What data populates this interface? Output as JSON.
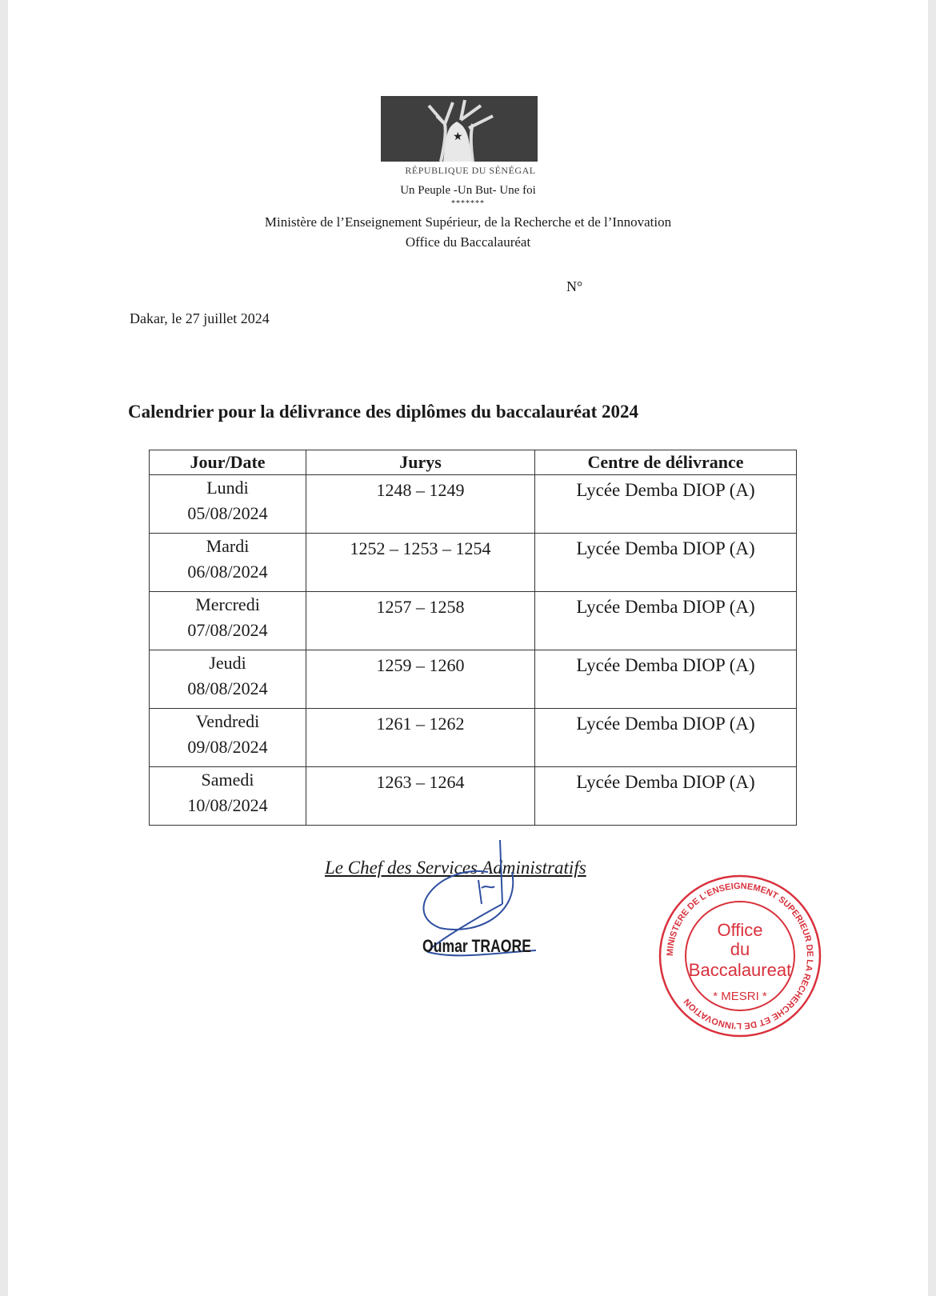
{
  "header": {
    "emblem": "baobab-star-emblem",
    "republic": "RÉPUBLIQUE DU SÉNÉGAL",
    "motto": "Un Peuple -Un But- Une foi",
    "stars": "*******",
    "ministry": "Ministère de l’Enseignement Supérieur, de la Recherche et de l’Innovation",
    "office": "Office du Baccalauréat"
  },
  "number_label": "N°",
  "place_date": "Dakar, le 27 juillet 2024",
  "title": "Calendrier pour la délivrance des diplômes du baccalauréat 2024",
  "table": {
    "headers": [
      "Jour/Date",
      "Jurys",
      "Centre de délivrance"
    ],
    "rows": [
      {
        "day": "Lundi",
        "date": "05/08/2024",
        "jurys": "1248 – 1249",
        "centre": "Lycée Demba DIOP (A)"
      },
      {
        "day": "Mardi",
        "date": "06/08/2024",
        "jurys": "1252 – 1253 – 1254",
        "centre": "Lycée Demba DIOP (A)"
      },
      {
        "day": "Mercredi",
        "date": "07/08/2024",
        "jurys": "1257 – 1258",
        "centre": "Lycée Demba DIOP (A)"
      },
      {
        "day": "Jeudi",
        "date": "08/08/2024",
        "jurys": "1259 – 1260",
        "centre": "Lycée Demba DIOP (A)"
      },
      {
        "day": "Vendredi",
        "date": "09/08/2024",
        "jurys": "1261 – 1262",
        "centre": "Lycée Demba DIOP (A)"
      },
      {
        "day": "Samedi",
        "date": "10/08/2024",
        "jurys": "1263 – 1264",
        "centre": "Lycée Demba DIOP (A)"
      }
    ]
  },
  "signature": {
    "role": "Le Chef des Services Administratifs",
    "name": "Oumar TRAORE"
  },
  "stamp": {
    "ring": "MINISTERE DE L'ENSEIGNEMENT SUPERIEUR DE LA RECHERCHE ET DE L'INNOVATION",
    "line1": "Office",
    "line2": "du",
    "line3": "Baccalaureat",
    "bottom": "MESRI",
    "color": "#d8313c"
  }
}
